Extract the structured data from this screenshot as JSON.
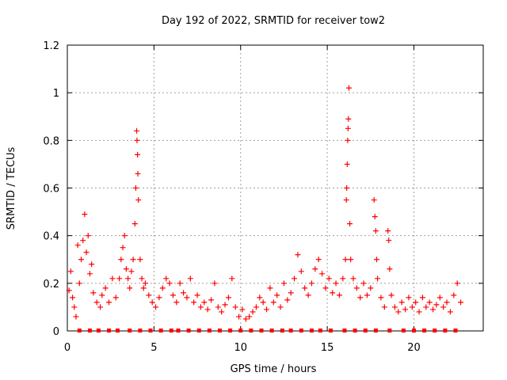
{
  "chart_data": {
    "type": "scatter",
    "title": "Day 192 of 2022, SRMTID for receiver tow2",
    "xlabel": "GPS time / hours",
    "ylabel": "SRMTID / TECUs",
    "xlim": [
      0,
      24
    ],
    "ylim": [
      0,
      1.2
    ],
    "xticks": [
      0,
      5,
      10,
      15,
      20
    ],
    "yticks": [
      0,
      0.2,
      0.4,
      0.6,
      0.8,
      1,
      1.2
    ],
    "ytick_labels": [
      "0",
      "0.2",
      "0.4",
      "0.6",
      "0.8",
      "1",
      "1.2"
    ],
    "grid": true,
    "marker": "+",
    "color": "#ff0000",
    "series": [
      {
        "name": "SRMTID",
        "points": [
          [
            0.1,
            0.17
          ],
          [
            0.2,
            0.25
          ],
          [
            0.3,
            0.14
          ],
          [
            0.4,
            0.1
          ],
          [
            0.5,
            0.06
          ],
          [
            0.6,
            0.36
          ],
          [
            0.7,
            0.2
          ],
          [
            0.8,
            0.3
          ],
          [
            0.9,
            0.38
          ],
          [
            1.0,
            0.49
          ],
          [
            1.1,
            0.33
          ],
          [
            1.2,
            0.4
          ],
          [
            1.3,
            0.24
          ],
          [
            1.4,
            0.28
          ],
          [
            1.5,
            0.16
          ],
          [
            1.7,
            0.12
          ],
          [
            1.9,
            0.1
          ],
          [
            2.0,
            0.15
          ],
          [
            2.2,
            0.18
          ],
          [
            2.4,
            0.12
          ],
          [
            2.6,
            0.22
          ],
          [
            2.8,
            0.14
          ],
          [
            3.0,
            0.22
          ],
          [
            3.1,
            0.3
          ],
          [
            3.2,
            0.35
          ],
          [
            3.3,
            0.4
          ],
          [
            3.4,
            0.26
          ],
          [
            3.5,
            0.22
          ],
          [
            3.6,
            0.18
          ],
          [
            3.7,
            0.25
          ],
          [
            3.8,
            0.3
          ],
          [
            3.9,
            0.45
          ],
          [
            3.95,
            0.6
          ],
          [
            4.0,
            0.84
          ],
          [
            4.02,
            0.8
          ],
          [
            4.05,
            0.74
          ],
          [
            4.07,
            0.66
          ],
          [
            4.1,
            0.55
          ],
          [
            4.2,
            0.3
          ],
          [
            4.3,
            0.22
          ],
          [
            4.4,
            0.18
          ],
          [
            4.5,
            0.2
          ],
          [
            4.7,
            0.15
          ],
          [
            4.9,
            0.12
          ],
          [
            5.1,
            0.1
          ],
          [
            5.3,
            0.14
          ],
          [
            5.5,
            0.18
          ],
          [
            5.7,
            0.22
          ],
          [
            5.9,
            0.2
          ],
          [
            6.1,
            0.15
          ],
          [
            6.3,
            0.12
          ],
          [
            6.5,
            0.2
          ],
          [
            6.7,
            0.16
          ],
          [
            6.9,
            0.14
          ],
          [
            7.1,
            0.22
          ],
          [
            7.3,
            0.12
          ],
          [
            7.5,
            0.15
          ],
          [
            7.7,
            0.1
          ],
          [
            7.9,
            0.12
          ],
          [
            8.1,
            0.09
          ],
          [
            8.3,
            0.13
          ],
          [
            8.5,
            0.2
          ],
          [
            8.7,
            0.1
          ],
          [
            8.9,
            0.08
          ],
          [
            9.1,
            0.11
          ],
          [
            9.3,
            0.14
          ],
          [
            9.5,
            0.22
          ],
          [
            9.7,
            0.1
          ],
          [
            9.9,
            0.06
          ],
          [
            10.1,
            0.09
          ],
          [
            10.3,
            0.05
          ],
          [
            10.5,
            0.06
          ],
          [
            10.7,
            0.08
          ],
          [
            10.9,
            0.1
          ],
          [
            11.1,
            0.14
          ],
          [
            11.3,
            0.12
          ],
          [
            11.5,
            0.09
          ],
          [
            11.7,
            0.18
          ],
          [
            11.9,
            0.12
          ],
          [
            12.1,
            0.15
          ],
          [
            12.3,
            0.1
          ],
          [
            12.5,
            0.2
          ],
          [
            12.7,
            0.13
          ],
          [
            12.9,
            0.16
          ],
          [
            13.1,
            0.22
          ],
          [
            13.3,
            0.32
          ],
          [
            13.5,
            0.25
          ],
          [
            13.7,
            0.18
          ],
          [
            13.9,
            0.15
          ],
          [
            14.1,
            0.2
          ],
          [
            14.3,
            0.26
          ],
          [
            14.5,
            0.3
          ],
          [
            14.7,
            0.24
          ],
          [
            14.9,
            0.18
          ],
          [
            15.1,
            0.22
          ],
          [
            15.3,
            0.16
          ],
          [
            15.5,
            0.2
          ],
          [
            15.7,
            0.15
          ],
          [
            15.9,
            0.22
          ],
          [
            16.05,
            0.3
          ],
          [
            16.1,
            0.55
          ],
          [
            16.12,
            0.6
          ],
          [
            16.15,
            0.7
          ],
          [
            16.18,
            0.8
          ],
          [
            16.2,
            0.85
          ],
          [
            16.22,
            0.89
          ],
          [
            16.25,
            1.02
          ],
          [
            16.3,
            0.45
          ],
          [
            16.35,
            0.3
          ],
          [
            16.5,
            0.22
          ],
          [
            16.7,
            0.18
          ],
          [
            16.9,
            0.14
          ],
          [
            17.1,
            0.2
          ],
          [
            17.3,
            0.15
          ],
          [
            17.5,
            0.18
          ],
          [
            17.7,
            0.55
          ],
          [
            17.75,
            0.48
          ],
          [
            17.8,
            0.42
          ],
          [
            17.85,
            0.3
          ],
          [
            17.9,
            0.22
          ],
          [
            18.1,
            0.14
          ],
          [
            18.3,
            0.1
          ],
          [
            18.5,
            0.42
          ],
          [
            18.55,
            0.38
          ],
          [
            18.6,
            0.26
          ],
          [
            18.7,
            0.15
          ],
          [
            18.9,
            0.1
          ],
          [
            19.1,
            0.08
          ],
          [
            19.3,
            0.12
          ],
          [
            19.5,
            0.09
          ],
          [
            19.7,
            0.14
          ],
          [
            19.9,
            0.1
          ],
          [
            20.1,
            0.12
          ],
          [
            20.3,
            0.08
          ],
          [
            20.5,
            0.14
          ],
          [
            20.7,
            0.1
          ],
          [
            20.9,
            0.12
          ],
          [
            21.1,
            0.09
          ],
          [
            21.3,
            0.11
          ],
          [
            21.5,
            0.14
          ],
          [
            21.7,
            0.1
          ],
          [
            21.9,
            0.12
          ],
          [
            22.1,
            0.08
          ],
          [
            22.3,
            0.15
          ],
          [
            22.5,
            0.2
          ],
          [
            22.7,
            0.12
          ]
        ]
      }
    ]
  },
  "baseline_markers": [
    0.7,
    1.3,
    1.8,
    2.4,
    2.9,
    3.6,
    4.2,
    4.8,
    5.4,
    6.0,
    6.4,
    7.0,
    7.6,
    8.2,
    8.8,
    9.4,
    10.0,
    10.6,
    11.2,
    11.8,
    12.4,
    12.9,
    13.5,
    14.1,
    14.6,
    15.2,
    16.0,
    16.6,
    17.2,
    17.8,
    18.6,
    19.4,
    20.0,
    20.6,
    21.2,
    21.8,
    22.4
  ]
}
